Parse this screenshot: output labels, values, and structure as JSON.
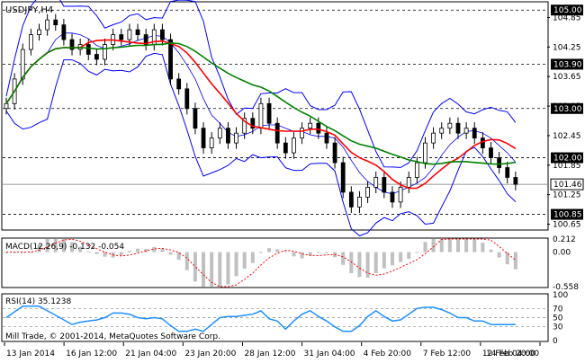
{
  "window": {
    "symbol_title": "USDJPY,H4",
    "copyright": "Mill Trade, © 2001-2014, MetaQuotes Software Corp."
  },
  "colors": {
    "background": "#ffffff",
    "grid": "#000000",
    "candle": "#000000",
    "ma_fast": "#ff0000",
    "ma_slow": "#008000",
    "bollinger": "#0000ff",
    "macd_hist": "#c0c0c0",
    "macd_signal": "#ff0000",
    "rsi_line": "#1e90ff",
    "price_label_bg": "#000000",
    "price_label_fg": "#ffffff"
  },
  "main_chart": {
    "price_axis_labels": [
      "104.85",
      "104.25",
      "103.65",
      "103.05",
      "102.45",
      "101.85",
      "101.25",
      "100.65"
    ],
    "price_axis_values": [
      104.85,
      104.25,
      103.65,
      103.05,
      102.45,
      101.85,
      101.25,
      100.65
    ],
    "level_lines": [
      {
        "label": "105.00",
        "value": 105.0
      },
      {
        "label": "103.90",
        "value": 103.9
      },
      {
        "label": "103.00",
        "value": 103.0
      },
      {
        "label": "102.00",
        "value": 102.0
      },
      {
        "label": "100.85",
        "value": 100.85
      }
    ],
    "current_price": {
      "label": "101.46",
      "value": 101.46
    },
    "y_range": [
      100.55,
      105.15
    ]
  },
  "macd_panel": {
    "title": "MACD(12,26,9) -0.132 -0.054",
    "axis_labels": [
      "0.212",
      "0.00",
      "-0.558"
    ],
    "axis_values": [
      0.212,
      0.0,
      -0.558
    ]
  },
  "rsi_panel": {
    "title": "RSI(14) 35.1238",
    "axis_labels": [
      "100",
      "70",
      "50",
      "30",
      "0"
    ],
    "axis_values": [
      100,
      70,
      50,
      30,
      0
    ]
  },
  "time_axis": {
    "labels": [
      "13 Jan 2014",
      "16 Jan 12:00",
      "21 Jan 04:00",
      "23 Jan 20:00",
      "28 Jan 12:00",
      "31 Jan 04:00",
      "4 Feb 20:00",
      "7 Feb 12:00",
      "12 Feb 04:00",
      "14 Feb 20:00"
    ]
  },
  "chart_data": {
    "type": "candlestick",
    "symbol": "USDJPY",
    "timeframe": "H4",
    "close_approx": [
      103.1,
      103.6,
      104.2,
      104.5,
      104.6,
      104.8,
      104.7,
      104.4,
      104.2,
      104.3,
      104.1,
      104.0,
      104.3,
      104.5,
      104.4,
      104.6,
      104.5,
      104.3,
      104.6,
      104.4,
      103.6,
      103.4,
      103.0,
      102.6,
      102.2,
      102.4,
      102.6,
      102.3,
      102.5,
      102.8,
      102.6,
      103.1,
      102.7,
      102.3,
      102.1,
      102.4,
      102.6,
      102.7,
      102.5,
      102.3,
      101.9,
      101.3,
      101.0,
      101.2,
      101.4,
      101.6,
      101.3,
      101.1,
      101.4,
      101.6,
      101.9,
      102.3,
      102.5,
      102.6,
      102.7,
      102.5,
      102.6,
      102.4,
      102.2,
      102.0,
      101.8,
      101.6,
      101.46
    ],
    "rsi_last": 35.1238,
    "macd_last": -0.132,
    "macd_signal_last": -0.054
  }
}
